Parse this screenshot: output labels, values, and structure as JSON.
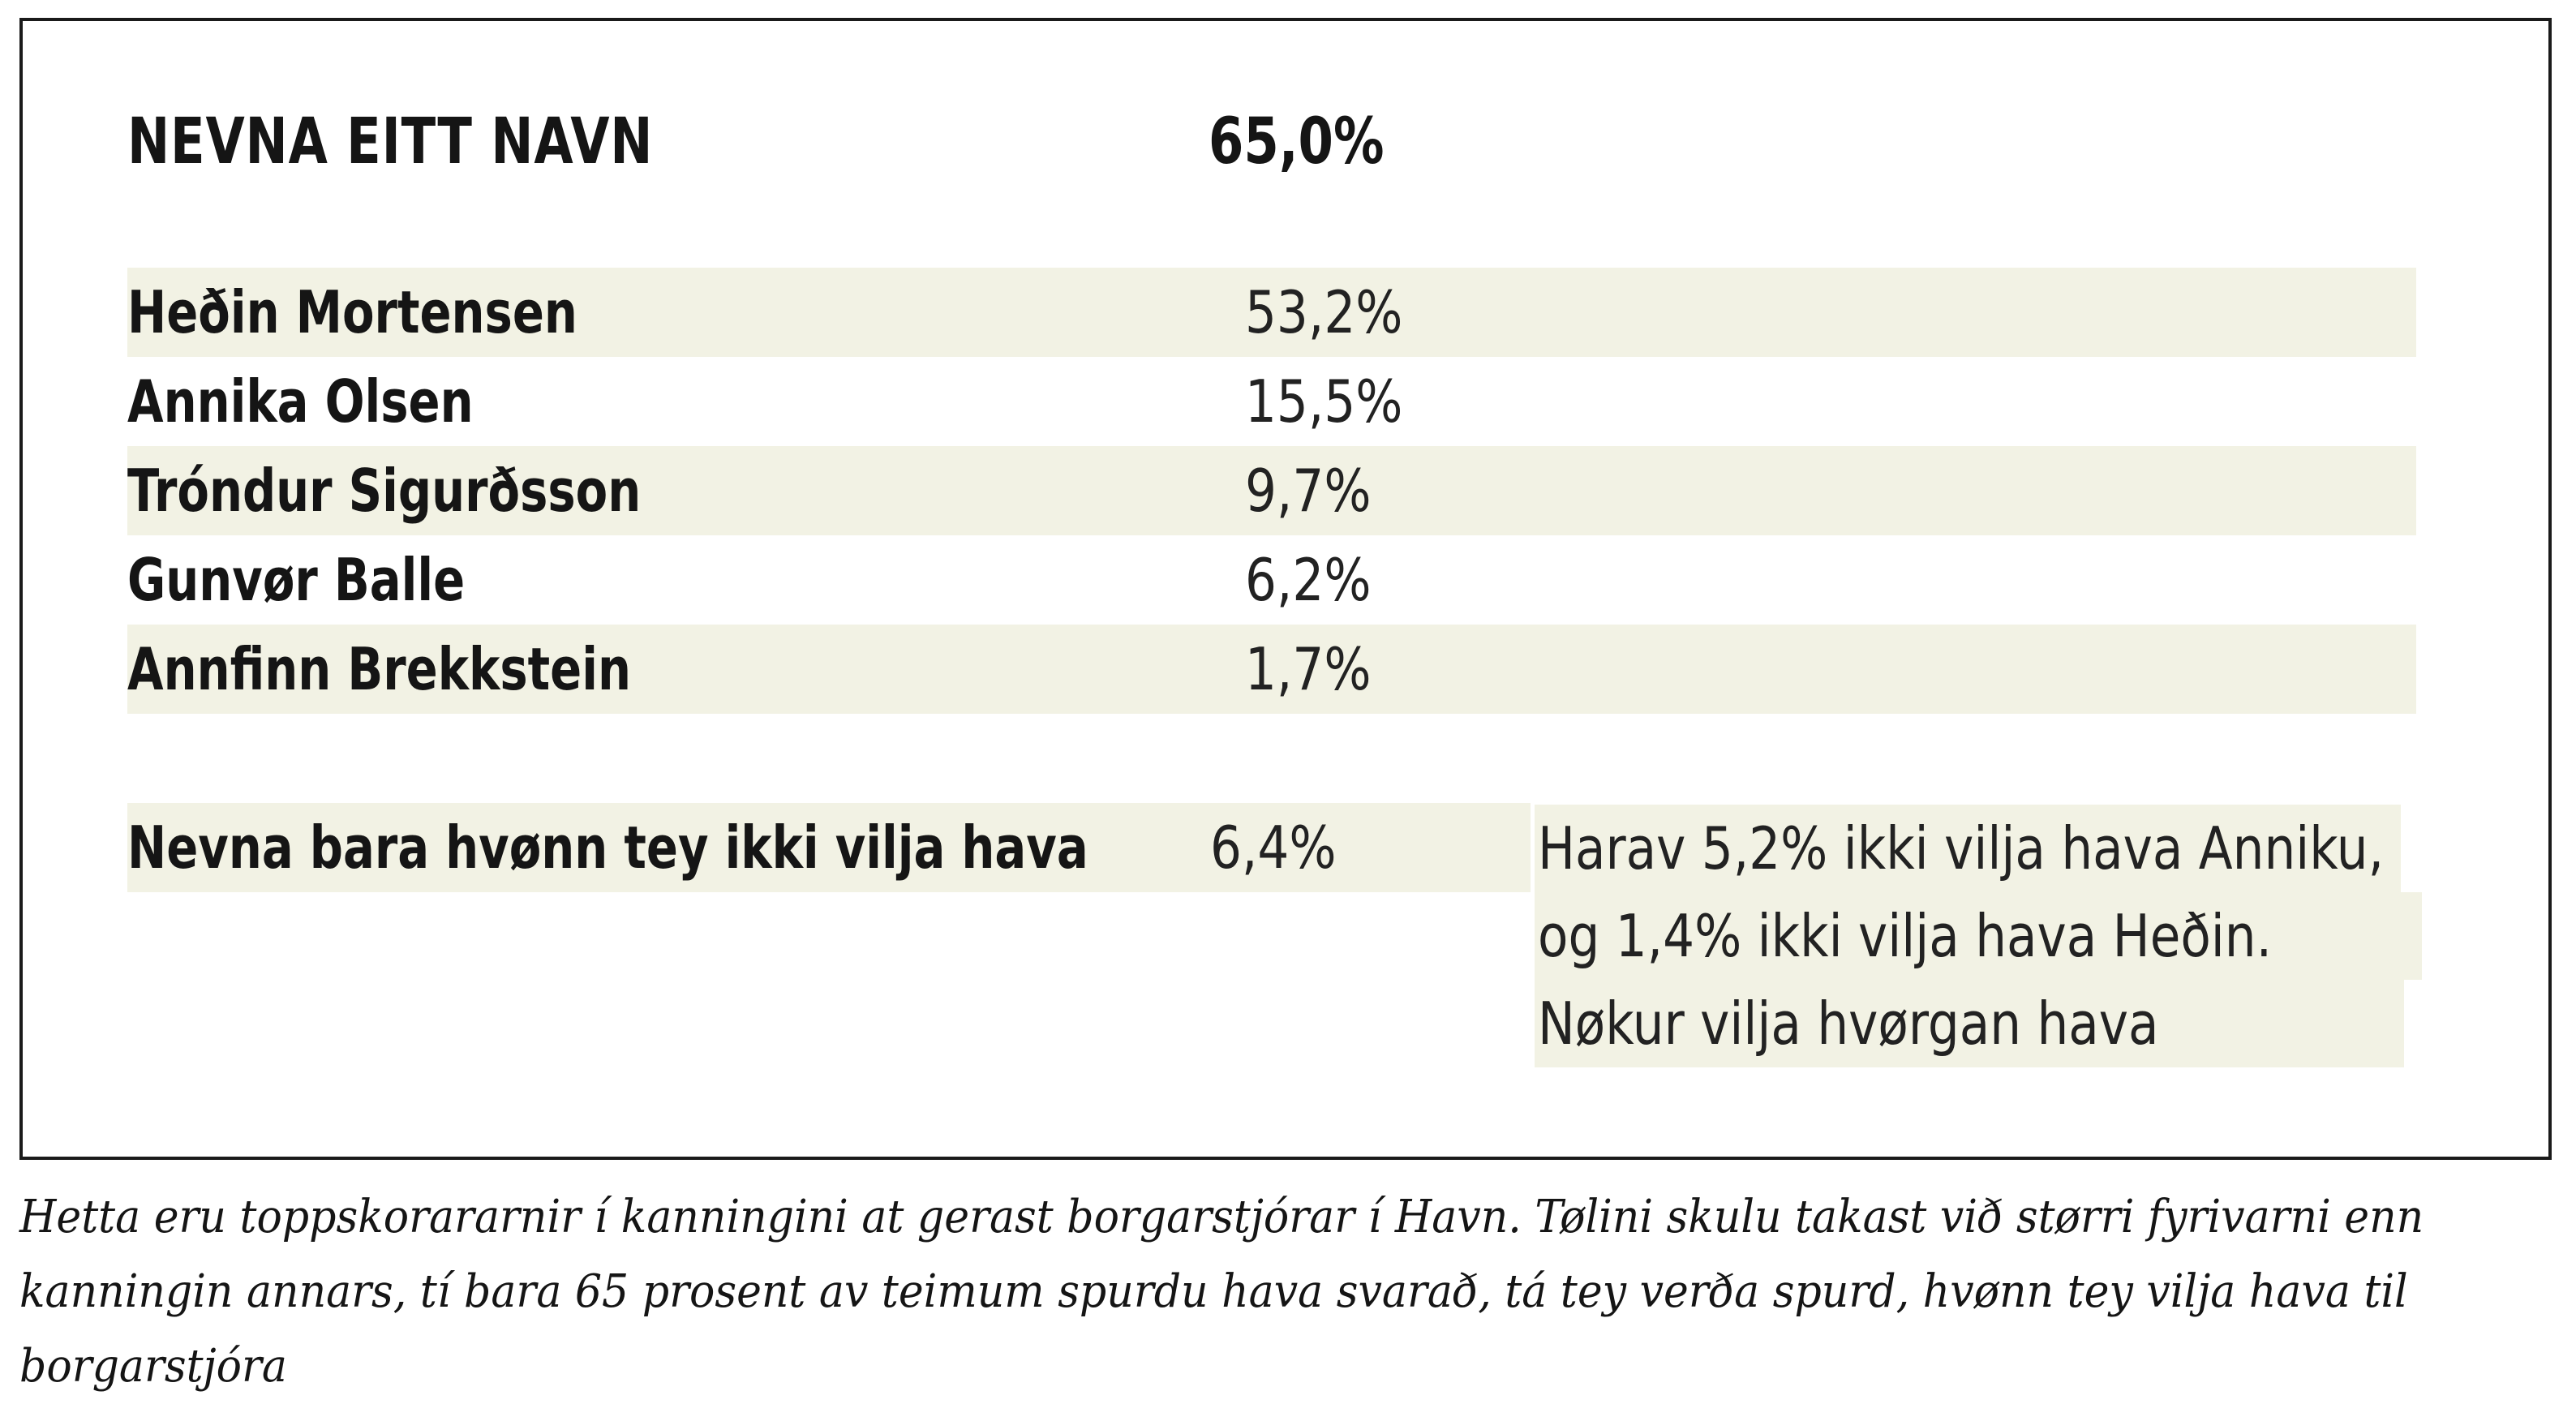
{
  "heading": {
    "label": "NEVNA EITT NAVN",
    "value": "65,0%"
  },
  "candidates": [
    {
      "name": "Heðin Mortensen",
      "value": "53,2%"
    },
    {
      "name": "Annika Olsen",
      "value": "15,5%"
    },
    {
      "name": "Tróndur Sigurðsson",
      "value": "9,7%"
    },
    {
      "name": "Gunvør Balle",
      "value": "6,2%"
    },
    {
      "name": "Annfinn Brekkstein",
      "value": "1,7%"
    }
  ],
  "negative": {
    "label": "Nevna bara hvønn tey ikki vilja hava",
    "value": "6,4%",
    "note_lines": [
      "Harav 5,2% ikki vilja hava Anniku,",
      "og 1,4% ikki vilja hava Heðin.",
      "Nøkur vilja hvørgan hava"
    ]
  },
  "caption": {
    "lines": [
      "Hetta eru toppskorararnir í kanningini at gerast borgarstjórar í Havn. Tølini skulu takast við størri fyrivarni enn",
      "kanningin annars, tí bara 65 prosent av teimum spurdu hava svarað, tá tey verða spurd, hvønn tey vilja hava til",
      "borgarstjóra"
    ]
  }
}
